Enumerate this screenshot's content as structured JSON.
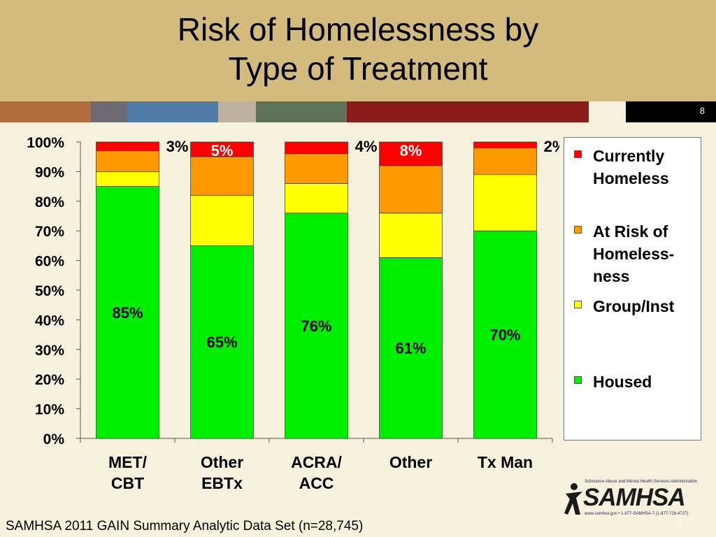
{
  "title_line1": "Risk of Homelessness by",
  "title_line2": "Type of Treatment",
  "slide_number": "8",
  "footer": "SAMHSA 2011 GAIN Summary Analytic Data Set (n=28,745)",
  "logo": {
    "word": "SAMHSA",
    "top_text": "Substance Abuse and Mental Health Services Administration",
    "bottom_text": "www.samhsa.gov • 1-877-SAMHSA-7 (1-877-726-4727)"
  },
  "colors": {
    "header_bg": "#d3bb7d",
    "slide_bg": "#f6f1dc",
    "stripes": [
      "#b06e3e",
      "#6e6a72",
      "#4f7ca8",
      "#bdb29f",
      "#5e7257",
      "#8b1a1a",
      "#f6f1dc"
    ]
  },
  "chart_data": {
    "type": "bar",
    "stacked": true,
    "categories": [
      [
        "MET/",
        "CBT"
      ],
      [
        "Other",
        "EBTx"
      ],
      [
        "ACRA/",
        "ACC"
      ],
      [
        "Other"
      ],
      [
        "Tx Man"
      ]
    ],
    "series": [
      {
        "name": "Housed",
        "color": "#00ee00",
        "values": [
          85,
          65,
          76,
          61,
          70
        ]
      },
      {
        "name": "Group/Inst",
        "color": "#ffff00",
        "values": [
          5,
          17,
          10,
          15,
          19
        ]
      },
      {
        "name": "At Risk of Homeless-ness",
        "color": "#ff9900",
        "values": [
          7,
          13,
          10,
          16,
          9
        ]
      },
      {
        "name": "Currently Homeless",
        "color": "#ff0000",
        "values": [
          3,
          5,
          4,
          8,
          2
        ]
      }
    ],
    "housed_labels": [
      "85%",
      "65%",
      "76%",
      "61%",
      "70%"
    ],
    "homeless_labels": [
      "3%",
      "5%",
      "4%",
      "8%",
      "2%"
    ],
    "yticks": [
      "0%",
      "10%",
      "20%",
      "30%",
      "40%",
      "50%",
      "60%",
      "70%",
      "80%",
      "90%",
      "100%"
    ],
    "ylim": [
      0,
      100
    ],
    "grid": false,
    "legend_position": "right",
    "legend": [
      {
        "lines": [
          "Currently",
          "Homeless"
        ],
        "color": "#ff0000"
      },
      {
        "lines": [
          "At Risk of",
          "Homeless-",
          "ness"
        ],
        "color": "#ff9900"
      },
      {
        "lines": [
          "Group/Inst"
        ],
        "color": "#ffff00"
      },
      {
        "lines": [
          "Housed"
        ],
        "color": "#00ee00"
      }
    ]
  }
}
